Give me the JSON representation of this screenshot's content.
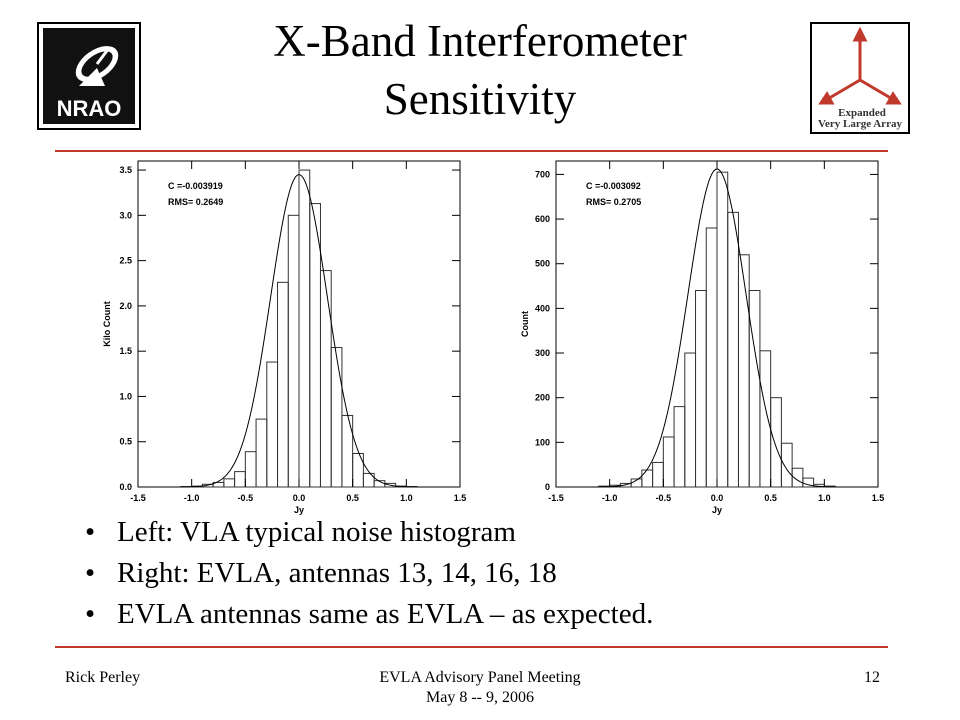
{
  "title_line1": "X-Band Interferometer",
  "title_line2": "Sensitivity",
  "logos": {
    "left": {
      "icon": "nrao-logo-icon",
      "text": "NRAO"
    },
    "right": {
      "icon": "evla-logo-icon",
      "line1": "Expanded",
      "line2": "Very Large Array",
      "color": "#c0392b"
    }
  },
  "bullets": [
    "Left:  VLA typical noise histogram",
    "Right: EVLA, antennas 13, 14, 16, 18",
    "EVLA antennas same as EVLA – as expected."
  ],
  "footer": {
    "left": "Rick Perley",
    "center_line1": "EVLA Advisory Panel Meeting",
    "center_line2": "May 8 -- 9, 2006",
    "right": "12"
  },
  "chart_data": [
    {
      "type": "bar",
      "xlabel": "Jy",
      "ylabel": "Kilo Count",
      "xlim": [
        -1.5,
        1.5
      ],
      "ylim": [
        0,
        3.6
      ],
      "xticks": [
        "-1.5",
        "-1.0",
        "-0.5",
        "0.0",
        "0.5",
        "1.0",
        "1.5"
      ],
      "yticks": [
        "0.0",
        "0.5",
        "1.0",
        "1.5",
        "2.0",
        "2.5",
        "3.0",
        "3.5"
      ],
      "annotations": [
        "C =-0.003919",
        "RMS= 0.2649"
      ],
      "bin_width": 0.1,
      "bin_centers": [
        -1.05,
        -0.95,
        -0.85,
        -0.75,
        -0.65,
        -0.55,
        -0.45,
        -0.35,
        -0.25,
        -0.15,
        -0.05,
        0.05,
        0.15,
        0.25,
        0.35,
        0.45,
        0.55,
        0.65,
        0.75,
        0.85,
        0.95,
        1.05
      ],
      "values": [
        0.005,
        0.01,
        0.03,
        0.05,
        0.09,
        0.17,
        0.39,
        0.75,
        1.38,
        2.26,
        3.0,
        3.5,
        3.13,
        2.39,
        1.54,
        0.79,
        0.37,
        0.15,
        0.07,
        0.04,
        0.01,
        0.005
      ],
      "fit_sigma": 0.2649,
      "fit_peak": 3.45
    },
    {
      "type": "bar",
      "xlabel": "Jy",
      "ylabel": "Count",
      "xlim": [
        -1.5,
        1.5
      ],
      "ylim": [
        0,
        730
      ],
      "xticks": [
        "-1.5",
        "-1.0",
        "-0.5",
        "0.0",
        "0.5",
        "1.0",
        "1.5"
      ],
      "yticks": [
        "0",
        "100",
        "200",
        "300",
        "400",
        "500",
        "600",
        "700"
      ],
      "annotations": [
        "C =-0.003092",
        "RMS= 0.2705"
      ],
      "bin_width": 0.1,
      "bin_centers": [
        -1.05,
        -0.95,
        -0.85,
        -0.75,
        -0.65,
        -0.55,
        -0.45,
        -0.35,
        -0.25,
        -0.15,
        -0.05,
        0.05,
        0.15,
        0.25,
        0.35,
        0.45,
        0.55,
        0.65,
        0.75,
        0.85,
        0.95,
        1.05
      ],
      "values": [
        2,
        4,
        8,
        18,
        38,
        55,
        112,
        180,
        300,
        440,
        580,
        705,
        615,
        520,
        440,
        305,
        200,
        98,
        42,
        20,
        6,
        2
      ],
      "fit_sigma": 0.2705,
      "fit_peak": 712
    }
  ]
}
